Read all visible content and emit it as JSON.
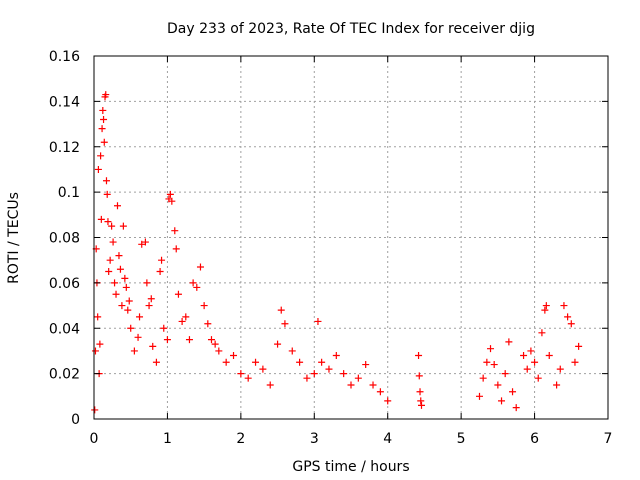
{
  "chart_data": {
    "type": "scatter",
    "title": "Day 233 of 2023, Rate Of TEC Index for receiver djig",
    "xlabel": "GPS time / hours",
    "ylabel": "ROTI / TECUs",
    "xlim": [
      0,
      7
    ],
    "ylim": [
      0,
      0.16
    ],
    "xticks": [
      "0",
      "1",
      "2",
      "3",
      "4",
      "5",
      "6",
      "7"
    ],
    "yticks": [
      "0",
      "0.02",
      "0.04",
      "0.06",
      "0.08",
      "0.1",
      "0.12",
      "0.14",
      "0.16"
    ],
    "grid": true,
    "marker": "+",
    "marker_color": "#ff0000",
    "series": [
      {
        "name": "ROTI",
        "points": [
          [
            0.01,
            0.004
          ],
          [
            0.02,
            0.03
          ],
          [
            0.03,
            0.075
          ],
          [
            0.04,
            0.06
          ],
          [
            0.05,
            0.045
          ],
          [
            0.06,
            0.11
          ],
          [
            0.07,
            0.02
          ],
          [
            0.08,
            0.033
          ],
          [
            0.09,
            0.116
          ],
          [
            0.1,
            0.088
          ],
          [
            0.11,
            0.128
          ],
          [
            0.12,
            0.136
          ],
          [
            0.13,
            0.132
          ],
          [
            0.14,
            0.122
          ],
          [
            0.15,
            0.142
          ],
          [
            0.16,
            0.143
          ],
          [
            0.17,
            0.105
          ],
          [
            0.18,
            0.099
          ],
          [
            0.19,
            0.087
          ],
          [
            0.2,
            0.065
          ],
          [
            0.22,
            0.07
          ],
          [
            0.24,
            0.085
          ],
          [
            0.26,
            0.078
          ],
          [
            0.28,
            0.06
          ],
          [
            0.3,
            0.055
          ],
          [
            0.32,
            0.094
          ],
          [
            0.34,
            0.072
          ],
          [
            0.36,
            0.066
          ],
          [
            0.38,
            0.05
          ],
          [
            0.4,
            0.085
          ],
          [
            0.42,
            0.062
          ],
          [
            0.44,
            0.058
          ],
          [
            0.46,
            0.048
          ],
          [
            0.48,
            0.052
          ],
          [
            0.5,
            0.04
          ],
          [
            0.55,
            0.03
          ],
          [
            0.6,
            0.036
          ],
          [
            0.62,
            0.045
          ],
          [
            0.65,
            0.077
          ],
          [
            0.7,
            0.078
          ],
          [
            0.72,
            0.06
          ],
          [
            0.75,
            0.05
          ],
          [
            0.78,
            0.053
          ],
          [
            0.8,
            0.032
          ],
          [
            0.85,
            0.025
          ],
          [
            0.9,
            0.065
          ],
          [
            0.92,
            0.07
          ],
          [
            0.95,
            0.04
          ],
          [
            1.0,
            0.035
          ],
          [
            1.02,
            0.097
          ],
          [
            1.04,
            0.099
          ],
          [
            1.06,
            0.096
          ],
          [
            1.1,
            0.083
          ],
          [
            1.12,
            0.075
          ],
          [
            1.15,
            0.055
          ],
          [
            1.2,
            0.043
          ],
          [
            1.25,
            0.045
          ],
          [
            1.3,
            0.035
          ],
          [
            1.35,
            0.06
          ],
          [
            1.4,
            0.058
          ],
          [
            1.45,
            0.067
          ],
          [
            1.5,
            0.05
          ],
          [
            1.55,
            0.042
          ],
          [
            1.6,
            0.035
          ],
          [
            1.65,
            0.033
          ],
          [
            1.7,
            0.03
          ],
          [
            1.8,
            0.025
          ],
          [
            1.9,
            0.028
          ],
          [
            2.0,
            0.02
          ],
          [
            2.1,
            0.018
          ],
          [
            2.2,
            0.025
          ],
          [
            2.3,
            0.022
          ],
          [
            2.4,
            0.015
          ],
          [
            2.5,
            0.033
          ],
          [
            2.55,
            0.048
          ],
          [
            2.6,
            0.042
          ],
          [
            2.7,
            0.03
          ],
          [
            2.8,
            0.025
          ],
          [
            2.9,
            0.018
          ],
          [
            3.0,
            0.02
          ],
          [
            3.05,
            0.043
          ],
          [
            3.1,
            0.025
          ],
          [
            3.2,
            0.022
          ],
          [
            3.3,
            0.028
          ],
          [
            3.4,
            0.02
          ],
          [
            3.5,
            0.015
          ],
          [
            3.6,
            0.018
          ],
          [
            3.7,
            0.024
          ],
          [
            3.8,
            0.015
          ],
          [
            3.9,
            0.012
          ],
          [
            4.0,
            0.008
          ],
          [
            4.42,
            0.028
          ],
          [
            4.43,
            0.019
          ],
          [
            4.44,
            0.012
          ],
          [
            4.45,
            0.008
          ],
          [
            4.46,
            0.006
          ],
          [
            5.25,
            0.01
          ],
          [
            5.3,
            0.018
          ],
          [
            5.35,
            0.025
          ],
          [
            5.4,
            0.031
          ],
          [
            5.45,
            0.024
          ],
          [
            5.5,
            0.015
          ],
          [
            5.55,
            0.008
          ],
          [
            5.6,
            0.02
          ],
          [
            5.65,
            0.034
          ],
          [
            5.7,
            0.012
          ],
          [
            5.75,
            0.005
          ],
          [
            5.85,
            0.028
          ],
          [
            5.9,
            0.022
          ],
          [
            5.95,
            0.03
          ],
          [
            6.0,
            0.025
          ],
          [
            6.05,
            0.018
          ],
          [
            6.1,
            0.038
          ],
          [
            6.14,
            0.048
          ],
          [
            6.16,
            0.05
          ],
          [
            6.2,
            0.028
          ],
          [
            6.3,
            0.015
          ],
          [
            6.35,
            0.022
          ],
          [
            6.4,
            0.05
          ],
          [
            6.45,
            0.045
          ],
          [
            6.5,
            0.042
          ],
          [
            6.55,
            0.025
          ],
          [
            6.6,
            0.032
          ]
        ]
      }
    ]
  }
}
